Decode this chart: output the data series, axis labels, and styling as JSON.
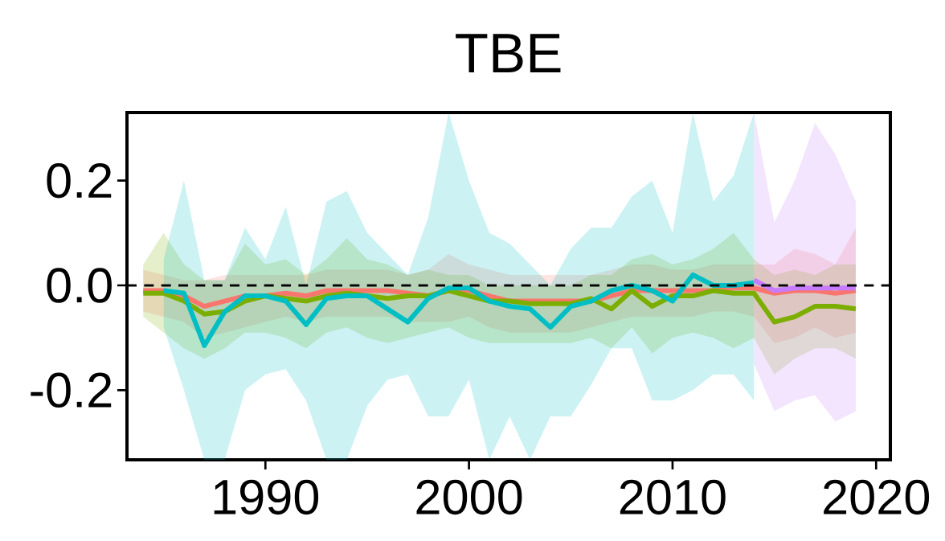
{
  "chart_data": {
    "type": "line",
    "title": "TBE",
    "xlim": [
      1983.2,
      2020.7
    ],
    "ylim": [
      -0.333,
      0.33
    ],
    "xticks": [
      1990,
      2000,
      2010,
      2020
    ],
    "yticks": [
      {
        "value": -0.2,
        "label": "-0.2"
      },
      {
        "value": 0,
        "label": "0.0"
      },
      {
        "value": 0.2,
        "label": "0.2"
      }
    ],
    "ref_lines": [
      {
        "axis": "y",
        "value": 0,
        "color": "#000000",
        "line_style": "dashed"
      }
    ],
    "series": [
      {
        "color": "#f8766d",
        "x": [
          1984,
          1985,
          1986,
          1987,
          1988,
          1989,
          1990,
          1991,
          1992,
          1993,
          1994,
          1995,
          1996,
          1997,
          1998,
          1999,
          2000,
          2001,
          2002,
          2003,
          2004,
          2005,
          2006,
          2007,
          2008,
          2009,
          2010,
          2011,
          2012,
          2013,
          2014,
          2015,
          2016,
          2017,
          2018,
          2019
        ],
        "values": [
          -0.01,
          -0.01,
          -0.02,
          -0.04,
          -0.03,
          -0.02,
          -0.02,
          -0.015,
          -0.02,
          -0.01,
          -0.01,
          -0.01,
          -0.01,
          -0.015,
          -0.02,
          -0.01,
          -0.01,
          -0.02,
          -0.03,
          -0.03,
          -0.03,
          -0.03,
          -0.03,
          -0.02,
          -0.01,
          -0.01,
          -0.01,
          -0.01,
          -0.01,
          -0.005,
          -0.005,
          -0.015,
          -0.01,
          -0.01,
          -0.015,
          -0.01
        ],
        "upper": [
          0.03,
          0.02,
          0.01,
          0.01,
          0.02,
          0.02,
          0.02,
          0.02,
          0.02,
          0.03,
          0.03,
          0.03,
          0.03,
          0.02,
          0.03,
          0.06,
          0.04,
          0.03,
          0.02,
          0.02,
          0.02,
          0.02,
          0.02,
          0.03,
          0.04,
          0.04,
          0.03,
          0.03,
          0.04,
          0.04,
          0.04,
          0.04,
          0.07,
          0.06,
          0.04,
          0.11
        ],
        "lower": [
          -0.05,
          -0.06,
          -0.07,
          -0.1,
          -0.09,
          -0.08,
          -0.07,
          -0.06,
          -0.07,
          -0.06,
          -0.06,
          -0.06,
          -0.06,
          -0.07,
          -0.07,
          -0.07,
          -0.06,
          -0.08,
          -0.09,
          -0.09,
          -0.09,
          -0.09,
          -0.08,
          -0.07,
          -0.06,
          -0.06,
          -0.06,
          -0.06,
          -0.05,
          -0.05,
          -0.06,
          -0.11,
          -0.1,
          -0.08,
          -0.1,
          -0.09
        ]
      },
      {
        "color": "#7cae00",
        "x": [
          1984,
          1985,
          1986,
          1987,
          1988,
          1989,
          1990,
          1991,
          1992,
          1993,
          1994,
          1995,
          1996,
          1997,
          1998,
          1999,
          2000,
          2001,
          2002,
          2003,
          2004,
          2005,
          2006,
          2007,
          2008,
          2009,
          2010,
          2011,
          2012,
          2013,
          2014,
          2015,
          2016,
          2017,
          2018,
          2019
        ],
        "values": [
          -0.015,
          -0.015,
          -0.03,
          -0.055,
          -0.05,
          -0.03,
          -0.02,
          -0.025,
          -0.03,
          -0.02,
          -0.015,
          -0.02,
          -0.025,
          -0.02,
          -0.02,
          -0.01,
          -0.02,
          -0.03,
          -0.03,
          -0.035,
          -0.035,
          -0.035,
          -0.025,
          -0.045,
          -0.01,
          -0.04,
          -0.02,
          -0.02,
          -0.01,
          -0.015,
          -0.015,
          -0.07,
          -0.06,
          -0.04,
          -0.04,
          -0.045
        ],
        "upper": [
          0.04,
          0.1,
          0.04,
          0.01,
          0.01,
          0.08,
          0.04,
          0.05,
          0.02,
          0.05,
          0.09,
          0.05,
          0.04,
          0.02,
          0.03,
          0.02,
          0.02,
          0.0,
          0.0,
          0.0,
          0.0,
          0.0,
          0.02,
          0.02,
          0.05,
          0.06,
          0.04,
          0.05,
          0.07,
          0.1,
          0.05,
          0.02,
          0.03,
          0.02,
          0.04,
          0.04
        ],
        "lower": [
          -0.06,
          -0.09,
          -0.12,
          -0.14,
          -0.12,
          -0.09,
          -0.09,
          -0.1,
          -0.12,
          -0.09,
          -0.08,
          -0.1,
          -0.11,
          -0.1,
          -0.09,
          -0.08,
          -0.1,
          -0.11,
          -0.11,
          -0.11,
          -0.11,
          -0.11,
          -0.1,
          -0.12,
          -0.08,
          -0.13,
          -0.1,
          -0.09,
          -0.1,
          -0.12,
          -0.1,
          -0.17,
          -0.14,
          -0.12,
          -0.12,
          -0.14
        ]
      },
      {
        "color": "#00bfc4",
        "x": [
          1985,
          1986,
          1987,
          1988,
          1989,
          1990,
          1991,
          1992,
          1993,
          1994,
          1995,
          1996,
          1997,
          1998,
          1999,
          2000,
          2001,
          2002,
          2003,
          2004,
          2005,
          2006,
          2007,
          2008,
          2009,
          2010,
          2011,
          2012,
          2013,
          2014
        ],
        "values": [
          -0.01,
          -0.015,
          -0.115,
          -0.05,
          -0.02,
          -0.02,
          -0.03,
          -0.075,
          -0.025,
          -0.02,
          -0.02,
          -0.045,
          -0.07,
          -0.025,
          -0.005,
          -0.005,
          -0.03,
          -0.04,
          -0.045,
          -0.08,
          -0.04,
          -0.03,
          -0.01,
          0.0,
          -0.01,
          -0.03,
          0.02,
          0.0,
          0.0,
          0.005
        ],
        "upper": [
          0.05,
          0.2,
          0.01,
          0.01,
          0.11,
          0.05,
          0.15,
          0.0,
          0.16,
          0.18,
          0.1,
          0.06,
          0.02,
          0.13,
          0.33,
          0.2,
          0.1,
          0.08,
          0.04,
          0.0,
          0.07,
          0.11,
          0.11,
          0.17,
          0.2,
          0.1,
          0.33,
          0.16,
          0.21,
          0.33
        ],
        "lower": [
          -0.08,
          -0.2,
          -0.333,
          -0.333,
          -0.2,
          -0.17,
          -0.16,
          -0.22,
          -0.333,
          -0.333,
          -0.23,
          -0.18,
          -0.17,
          -0.25,
          -0.25,
          -0.18,
          -0.333,
          -0.25,
          -0.333,
          -0.25,
          -0.25,
          -0.19,
          -0.12,
          -0.12,
          -0.22,
          -0.22,
          -0.2,
          -0.17,
          -0.17,
          -0.22
        ]
      },
      {
        "color": "#c77cff",
        "x": [
          2014,
          2015,
          2016,
          2017,
          2018,
          2019
        ],
        "values": [
          0.01,
          -0.01,
          -0.005,
          -0.005,
          -0.005,
          -0.005
        ],
        "upper": [
          0.33,
          0.12,
          0.2,
          0.31,
          0.25,
          0.16
        ],
        "lower": [
          -0.15,
          -0.24,
          -0.22,
          -0.21,
          -0.26,
          -0.24
        ]
      }
    ]
  }
}
